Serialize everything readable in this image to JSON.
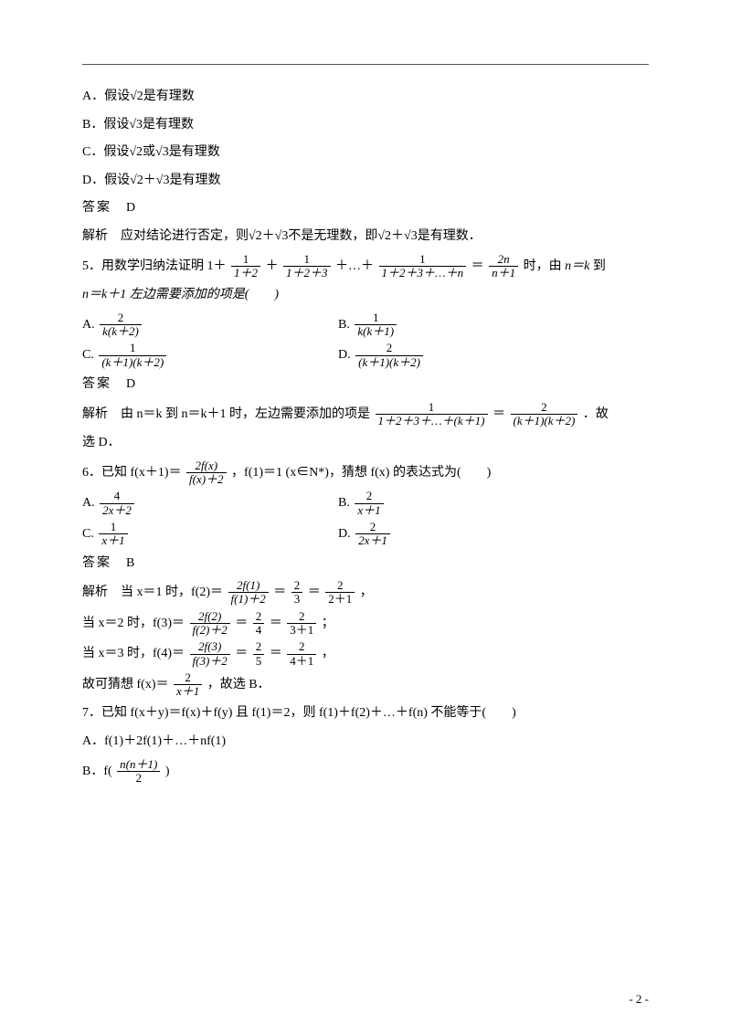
{
  "q4_options": {
    "a": "A．假设√2是有理数",
    "b": "B．假设√3是有理数",
    "c": "C．假设√2或√3是有理数",
    "d": "D．假设√2＋√3是有理数"
  },
  "q4_answer_label": "答案　D",
  "q4_explain": "解析　应对结论进行否定，则√2＋√3不是无理数，即√2＋√3是有理数．",
  "q5_stem_a": "5．用数学归纳法证明 1＋",
  "q5_stem_b": "＋…＋",
  "q5_stem_c": "＝",
  "q5_stem_d": "时，由 ",
  "q5_nk": "n＝k",
  "q5_stem_e": "到",
  "q5_line2": "n＝k＋1 左边需要添加的项是(　　)",
  "q5_opts": {
    "a_pre": "A. ",
    "a_num": "2",
    "a_den": "k(k＋2)",
    "b_pre": "B. ",
    "b_num": "1",
    "b_den": "k(k＋1)",
    "c_pre": "C. ",
    "c_num": "1",
    "c_den": "(k＋1)(k＋2)",
    "d_pre": "D. ",
    "d_num": "2",
    "d_den": "(k＋1)(k＋2)"
  },
  "q5_answer": "答案　D",
  "q5_expl_a": "解析　由 n＝k 到 n＝k＋1 时，左边需要添加的项是",
  "q5_expl_f1n": "1",
  "q5_expl_f1d": "1＋2＋3＋…＋(k＋1)",
  "q5_expl_eq": "＝",
  "q5_expl_f2n": "2",
  "q5_expl_f2d": "(k＋1)(k＋2)",
  "q5_expl_end": "．故",
  "q5_expl_line2": "选 D．",
  "q6_a": "6．已知 f(x＋1)＝",
  "q6_f1n": "2f(x)",
  "q6_f1d": "f(x)＋2",
  "q6_b": "，f(1)＝1 (x∈N*)，猜想 f(x) 的表达式为(　　)",
  "q6_opts": {
    "a_pre": "A. ",
    "a_num": "4",
    "a_den": "2x＋2",
    "b_pre": "B. ",
    "b_num": "2",
    "b_den": "x＋1",
    "c_pre": "C. ",
    "c_num": "1",
    "c_den": "x＋1",
    "d_pre": "D. ",
    "d_num": "2",
    "d_den": "2x＋1"
  },
  "q6_answer": "答案　B",
  "q6_e1a": "解析　当 x＝1 时，f(2)＝",
  "q6_e1f1n": "2f(1)",
  "q6_e1f1d": "f(1)＋2",
  "q6_eq": "＝",
  "q6_e1f2n": "2",
  "q6_e1f2d": "3",
  "q6_e1f3n": "2",
  "q6_e1f3d": "2＋1",
  "q6_comma": "，",
  "q6_e2a": "当 x＝2 时，f(3)＝",
  "q6_e2f1n": "2f(2)",
  "q6_e2f1d": "f(2)＋2",
  "q6_e2f2n": "2",
  "q6_e2f2d": "4",
  "q6_e2f3n": "2",
  "q6_e2f3d": "3＋1",
  "q6_semi": "；",
  "q6_e3a": "当 x＝3 时，f(4)＝",
  "q6_e3f1n": "2f(3)",
  "q6_e3f1d": "f(3)＋2",
  "q6_e3f2n": "2",
  "q6_e3f2d": "5",
  "q6_e3f3n": "2",
  "q6_e3f3d": "4＋1",
  "q6_concl_a": "故可猜想 f(x)＝",
  "q6_concl_n": "2",
  "q6_concl_d": "x＋1",
  "q6_concl_b": "，故选 B．",
  "q7_stem": "7．已知 f(x＋y)＝f(x)＋f(y) 且 f(1)＝2，则 f(1)＋f(2)＋…＋f(n) 不能等于(　　)",
  "q7_a": "A．f(1)＋2f(1)＋…＋nf(1)",
  "q7_b_pre": "B．f(",
  "q7_b_num": "n(n＋1)",
  "q7_b_den": "2",
  "q7_b_post": ")",
  "page_num": "- 2 -",
  "fracs": {
    "p1n": "1",
    "p1d": "1＋2",
    "p2n": "1",
    "p2d": "1＋2＋3",
    "p3n": "1",
    "p3d": "1＋2＋3＋…＋n",
    "p4n": "2n",
    "p4d": "n＋1"
  },
  "plus": "＋"
}
